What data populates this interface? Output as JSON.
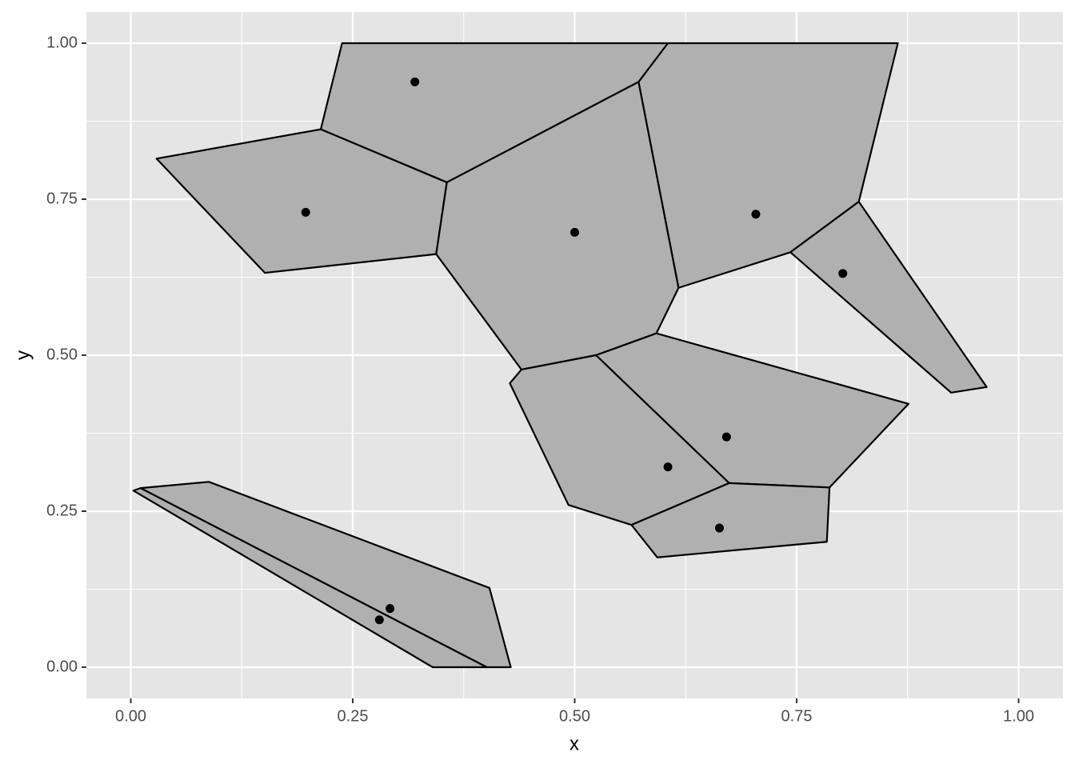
{
  "chart_data": {
    "type": "voronoi",
    "x_label": "x",
    "y_label": "y",
    "xlim": [
      -0.05,
      1.05
    ],
    "ylim": [
      -0.05,
      1.05
    ],
    "xticks": [
      {
        "value": 0,
        "label": "0.00"
      },
      {
        "value": 0.25,
        "label": "0.25"
      },
      {
        "value": 0.5,
        "label": "0.50"
      },
      {
        "value": 0.75,
        "label": "0.75"
      },
      {
        "value": 1,
        "label": "1.00"
      }
    ],
    "yticks": [
      {
        "value": 0,
        "label": "0.00"
      },
      {
        "value": 0.25,
        "label": "0.25"
      },
      {
        "value": 0.5,
        "label": "0.50"
      },
      {
        "value": 0.75,
        "label": "0.75"
      },
      {
        "value": 1,
        "label": "1.00"
      }
    ],
    "grid": true,
    "cell_color": "#b0b0b0",
    "point_color": "#000000",
    "points": {
      "x": [
        0.32,
        0.197,
        0.5,
        0.704,
        0.802,
        0.671,
        0.605,
        0.663,
        0.292,
        0.28
      ],
      "y": [
        0.938,
        0.729,
        0.697,
        0.726,
        0.631,
        0.369,
        0.321,
        0.223,
        0.094,
        0.076
      ]
    },
    "cells": [
      {
        "x": [
          0.238,
          0.605,
          0.572,
          0.356,
          0.214
        ],
        "y": [
          1.0,
          1.0,
          0.938,
          0.777,
          0.862
        ]
      },
      {
        "x": [
          0.029,
          0.214,
          0.356,
          0.344,
          0.151
        ],
        "y": [
          0.815,
          0.862,
          0.777,
          0.662,
          0.632
        ]
      },
      {
        "x": [
          0.356,
          0.572,
          0.617,
          0.592,
          0.524,
          0.44,
          0.344
        ],
        "y": [
          0.777,
          0.938,
          0.608,
          0.535,
          0.5,
          0.477,
          0.662
        ]
      },
      {
        "x": [
          0.605,
          0.864,
          0.82,
          0.743,
          0.617,
          0.572
        ],
        "y": [
          1.0,
          1.0,
          0.746,
          0.665,
          0.608,
          0.938
        ]
      },
      {
        "x": [
          0.743,
          0.82,
          0.964,
          0.924
        ],
        "y": [
          0.665,
          0.746,
          0.449,
          0.44
        ]
      },
      {
        "x": [
          0.524,
          0.592,
          0.876,
          0.787,
          0.674
        ],
        "y": [
          0.5,
          0.535,
          0.422,
          0.288,
          0.295
        ]
      },
      {
        "x": [
          0.44,
          0.524,
          0.674,
          0.564,
          0.493,
          0.427
        ],
        "y": [
          0.477,
          0.5,
          0.295,
          0.228,
          0.26,
          0.455
        ]
      },
      {
        "x": [
          0.564,
          0.674,
          0.787,
          0.784,
          0.593
        ],
        "y": [
          0.228,
          0.295,
          0.288,
          0.201,
          0.176
        ]
      },
      {
        "x": [
          0.011,
          0.088,
          0.404,
          0.428,
          0.401
        ],
        "y": [
          0.287,
          0.297,
          0.127,
          0.0,
          0.0
        ]
      },
      {
        "x": [
          0.003,
          0.011,
          0.401,
          0.34
        ],
        "y": [
          0.283,
          0.287,
          0.0,
          0.0
        ]
      }
    ]
  }
}
